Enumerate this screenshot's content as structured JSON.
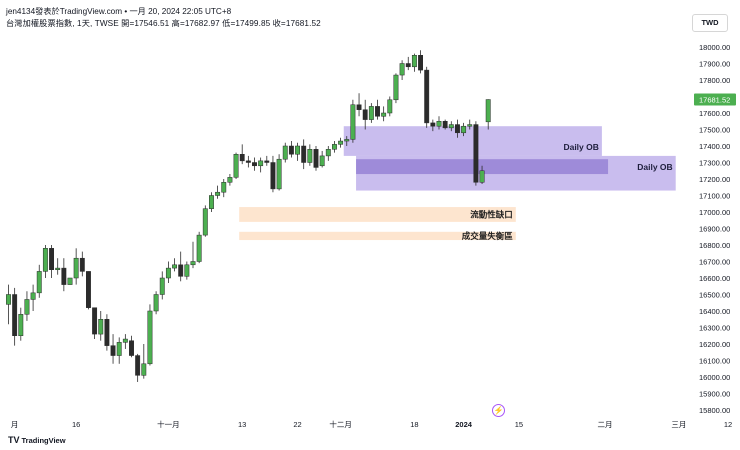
{
  "header": {
    "line1": "jen4134發表於TradingView.com • 一月 20, 2024 22:05 UTC+8",
    "line2": "台灣加權股票指數, 1天, TWSE  開=17546.51 高=17682.97 低=17499.85 收=17681.52"
  },
  "currency_button": "TWD",
  "brand": {
    "logo": "TV",
    "name": "TradingView"
  },
  "icons": {
    "replay": "lightning-icon"
  },
  "colors": {
    "up": "#4caf50",
    "down": "#2b2b2b",
    "ob_zone": "#9c86e0",
    "gap_zone": "#fde4cc",
    "price_label": "#4caf50"
  },
  "chart_data": {
    "type": "candlestick",
    "title": "台灣加權股票指數, 1天, TWSE",
    "ylim": [
      15800,
      18100
    ],
    "y_ticks": [
      15800,
      15900,
      16000,
      16100,
      16200,
      16300,
      16400,
      16500,
      16600,
      16700,
      16800,
      16900,
      17000,
      17100,
      17200,
      17300,
      17400,
      17500,
      17600,
      17700,
      17800,
      17900,
      18000
    ],
    "x_ticks": [
      {
        "bar": 1,
        "label": "月"
      },
      {
        "bar": 11,
        "label": "16"
      },
      {
        "bar": 26,
        "label": "十一月"
      },
      {
        "bar": 38,
        "label": "13"
      },
      {
        "bar": 47,
        "label": "22"
      },
      {
        "bar": 54,
        "label": "十二月"
      },
      {
        "bar": 66,
        "label": "18"
      },
      {
        "bar": 74,
        "label": "2024"
      },
      {
        "bar": 83,
        "label": "15"
      },
      {
        "bar": 97,
        "label": "二月"
      },
      {
        "bar": 109,
        "label": "三月"
      },
      {
        "bar": 117,
        "label": "12"
      }
    ],
    "last_price": "17681.52",
    "candles": [
      {
        "o": 16440,
        "h": 16560,
        "l": 16320,
        "c": 16500
      },
      {
        "o": 16500,
        "h": 16540,
        "l": 16190,
        "c": 16250
      },
      {
        "o": 16250,
        "h": 16420,
        "l": 16220,
        "c": 16380
      },
      {
        "o": 16380,
        "h": 16520,
        "l": 16340,
        "c": 16470
      },
      {
        "o": 16470,
        "h": 16560,
        "l": 16400,
        "c": 16510
      },
      {
        "o": 16510,
        "h": 16680,
        "l": 16480,
        "c": 16640
      },
      {
        "o": 16640,
        "h": 16800,
        "l": 16600,
        "c": 16780
      },
      {
        "o": 16780,
        "h": 16800,
        "l": 16600,
        "c": 16650
      },
      {
        "o": 16650,
        "h": 16720,
        "l": 16620,
        "c": 16660
      },
      {
        "o": 16660,
        "h": 16720,
        "l": 16520,
        "c": 16560
      },
      {
        "o": 16560,
        "h": 16600,
        "l": 16560,
        "c": 16600
      },
      {
        "o": 16600,
        "h": 16780,
        "l": 16560,
        "c": 16720
      },
      {
        "o": 16720,
        "h": 16760,
        "l": 16610,
        "c": 16640
      },
      {
        "o": 16640,
        "h": 16640,
        "l": 16410,
        "c": 16420
      },
      {
        "o": 16420,
        "h": 16420,
        "l": 16230,
        "c": 16260
      },
      {
        "o": 16260,
        "h": 16400,
        "l": 16220,
        "c": 16350
      },
      {
        "o": 16350,
        "h": 16380,
        "l": 16160,
        "c": 16190
      },
      {
        "o": 16190,
        "h": 16260,
        "l": 16080,
        "c": 16130
      },
      {
        "o": 16130,
        "h": 16240,
        "l": 16080,
        "c": 16210
      },
      {
        "o": 16210,
        "h": 16260,
        "l": 16170,
        "c": 16230
      },
      {
        "o": 16220,
        "h": 16250,
        "l": 16120,
        "c": 16130
      },
      {
        "o": 16130,
        "h": 16140,
        "l": 15970,
        "c": 16010
      },
      {
        "o": 16010,
        "h": 16200,
        "l": 15990,
        "c": 16080
      },
      {
        "o": 16080,
        "h": 16440,
        "l": 16070,
        "c": 16400
      },
      {
        "o": 16400,
        "h": 16520,
        "l": 16380,
        "c": 16500
      },
      {
        "o": 16500,
        "h": 16640,
        "l": 16470,
        "c": 16600
      },
      {
        "o": 16600,
        "h": 16700,
        "l": 16570,
        "c": 16660
      },
      {
        "o": 16660,
        "h": 16720,
        "l": 16640,
        "c": 16680
      },
      {
        "o": 16680,
        "h": 16760,
        "l": 16580,
        "c": 16610
      },
      {
        "o": 16610,
        "h": 16700,
        "l": 16590,
        "c": 16680
      },
      {
        "o": 16680,
        "h": 16820,
        "l": 16660,
        "c": 16700
      },
      {
        "o": 16700,
        "h": 16880,
        "l": 16690,
        "c": 16860
      },
      {
        "o": 16860,
        "h": 17040,
        "l": 16850,
        "c": 17020
      },
      {
        "o": 17020,
        "h": 17120,
        "l": 17000,
        "c": 17100
      },
      {
        "o": 17100,
        "h": 17160,
        "l": 17080,
        "c": 17120
      },
      {
        "o": 17120,
        "h": 17200,
        "l": 17090,
        "c": 17180
      },
      {
        "o": 17180,
        "h": 17230,
        "l": 17160,
        "c": 17210
      },
      {
        "o": 17210,
        "h": 17360,
        "l": 17200,
        "c": 17350
      },
      {
        "o": 17350,
        "h": 17410,
        "l": 17290,
        "c": 17310
      },
      {
        "o": 17310,
        "h": 17340,
        "l": 17270,
        "c": 17300
      },
      {
        "o": 17300,
        "h": 17330,
        "l": 17250,
        "c": 17280
      },
      {
        "o": 17280,
        "h": 17330,
        "l": 17240,
        "c": 17310
      },
      {
        "o": 17310,
        "h": 17340,
        "l": 17280,
        "c": 17300
      },
      {
        "o": 17300,
        "h": 17340,
        "l": 17120,
        "c": 17140
      },
      {
        "o": 17140,
        "h": 17350,
        "l": 17130,
        "c": 17320
      },
      {
        "o": 17320,
        "h": 17420,
        "l": 17300,
        "c": 17400
      },
      {
        "o": 17400,
        "h": 17430,
        "l": 17330,
        "c": 17350
      },
      {
        "o": 17350,
        "h": 17420,
        "l": 17310,
        "c": 17400
      },
      {
        "o": 17400,
        "h": 17440,
        "l": 17260,
        "c": 17300
      },
      {
        "o": 17300,
        "h": 17410,
        "l": 17280,
        "c": 17380
      },
      {
        "o": 17380,
        "h": 17400,
        "l": 17250,
        "c": 17270
      },
      {
        "o": 17280,
        "h": 17370,
        "l": 17270,
        "c": 17340
      },
      {
        "o": 17340,
        "h": 17400,
        "l": 17310,
        "c": 17380
      },
      {
        "o": 17380,
        "h": 17430,
        "l": 17360,
        "c": 17410
      },
      {
        "o": 17410,
        "h": 17450,
        "l": 17390,
        "c": 17430
      },
      {
        "o": 17430,
        "h": 17460,
        "l": 17400,
        "c": 17440
      },
      {
        "o": 17440,
        "h": 17680,
        "l": 17420,
        "c": 17650
      },
      {
        "o": 17650,
        "h": 17720,
        "l": 17580,
        "c": 17620
      },
      {
        "o": 17620,
        "h": 17680,
        "l": 17500,
        "c": 17560
      },
      {
        "o": 17560,
        "h": 17660,
        "l": 17540,
        "c": 17640
      },
      {
        "o": 17640,
        "h": 17680,
        "l": 17560,
        "c": 17580
      },
      {
        "o": 17580,
        "h": 17640,
        "l": 17550,
        "c": 17600
      },
      {
        "o": 17600,
        "h": 17700,
        "l": 17580,
        "c": 17680
      },
      {
        "o": 17680,
        "h": 17840,
        "l": 17660,
        "c": 17830
      },
      {
        "o": 17830,
        "h": 17920,
        "l": 17800,
        "c": 17900
      },
      {
        "o": 17900,
        "h": 17940,
        "l": 17860,
        "c": 17880
      },
      {
        "o": 17880,
        "h": 17960,
        "l": 17850,
        "c": 17950
      },
      {
        "o": 17950,
        "h": 17980,
        "l": 17840,
        "c": 17860
      },
      {
        "o": 17860,
        "h": 17880,
        "l": 17510,
        "c": 17540
      },
      {
        "o": 17540,
        "h": 17560,
        "l": 17490,
        "c": 17520
      },
      {
        "o": 17520,
        "h": 17580,
        "l": 17500,
        "c": 17550
      },
      {
        "o": 17550,
        "h": 17560,
        "l": 17500,
        "c": 17510
      },
      {
        "o": 17510,
        "h": 17550,
        "l": 17490,
        "c": 17530
      },
      {
        "o": 17530,
        "h": 17560,
        "l": 17450,
        "c": 17480
      },
      {
        "o": 17480,
        "h": 17540,
        "l": 17460,
        "c": 17520
      },
      {
        "o": 17520,
        "h": 17560,
        "l": 17500,
        "c": 17530
      },
      {
        "o": 17530,
        "h": 17550,
        "l": 17160,
        "c": 17180
      },
      {
        "o": 17180,
        "h": 17280,
        "l": 17170,
        "c": 17250
      },
      {
        "o": 17546.51,
        "h": 17682.97,
        "l": 17499.85,
        "c": 17681.52
      }
    ],
    "zones": [
      {
        "name": "Daily OB",
        "start_bar": 55,
        "end_bar": 96,
        "top": 17520,
        "bottom": 17340,
        "color": "#9c86e0",
        "label_color": "#1e1e3c"
      },
      {
        "name": "Daily OB",
        "start_bar": 57,
        "end_bar": 108,
        "top": 17340,
        "bottom": 17130,
        "color": "#9c86e0",
        "label_color": "#1e1e3c"
      },
      {
        "name": "",
        "start_bar": 57,
        "end_bar": 97,
        "top": 17320,
        "bottom": 17230,
        "color": "#7a62c8",
        "label_color": ""
      },
      {
        "name": "流動性缺口",
        "start_bar": 38,
        "end_bar": 82,
        "top": 17030,
        "bottom": 16940,
        "color": "#fde4cc",
        "label_color": "#1e1e1e"
      },
      {
        "name": "成交量失衡區",
        "start_bar": 38,
        "end_bar": 82,
        "top": 16880,
        "bottom": 16830,
        "color": "#fde4cc",
        "label_color": "#1e1e1e"
      }
    ]
  }
}
